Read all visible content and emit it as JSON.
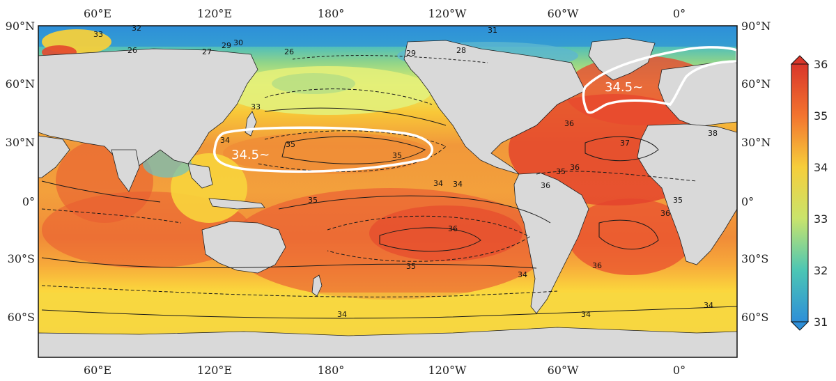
{
  "map": {
    "top_ticks": [
      "60°E",
      "120°E",
      "180°",
      "120°W",
      "60°W",
      "0°"
    ],
    "bottom_ticks": [
      "60°E",
      "120°E",
      "180°",
      "120°W",
      "60°W",
      "0°"
    ],
    "lat_ticks": [
      "90°N",
      "60°N",
      "30°N",
      "0°",
      "30°S",
      "60°S"
    ],
    "colorbar": {
      "ticks": [
        "36",
        "35",
        "34",
        "33",
        "32",
        "31"
      ],
      "min": 31,
      "max": 36
    },
    "colors": {
      "land": "#d9d9d9",
      "low": "#2b9fd9",
      "mid": "#f3df3c",
      "high": "#e8432e"
    },
    "annotations": [
      "34.5~",
      "34.5~"
    ],
    "contour_labels": [
      "33",
      "32",
      "31",
      "30",
      "29",
      "26",
      "27",
      "26",
      "29",
      "28",
      "33",
      "34",
      "35",
      "35",
      "34",
      "35",
      "36",
      "35",
      "34",
      "34",
      "34",
      "36",
      "37",
      "36",
      "35",
      "36",
      "38",
      "35",
      "36",
      "36",
      "34",
      "34"
    ]
  }
}
